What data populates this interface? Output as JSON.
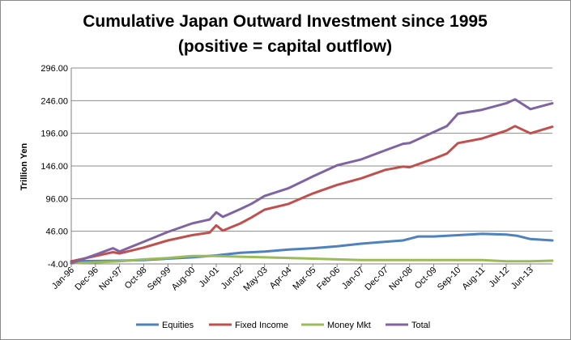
{
  "chart_data": {
    "type": "line",
    "title_line1": "Cumulative Japan Outward Investment since 1995",
    "title_line2": "(positive = capital outflow)",
    "ylabel": "Trillion Yen",
    "xlabel": "",
    "ylim": [
      -4,
      296
    ],
    "ytick_labels": [
      "296.00",
      "246.00",
      "196.00",
      "146.00",
      "96.00",
      "46.00",
      "-4.00"
    ],
    "ytick_values": [
      296,
      246,
      196,
      146,
      96,
      46,
      -4
    ],
    "xtick_labels": [
      "Jan-96",
      "Dec-96",
      "Nov-97",
      "Oct-98",
      "Sep-99",
      "Aug-00",
      "Jul-01",
      "Jun-02",
      "May-03",
      "Apr-04",
      "Mar-05",
      "Feb-06",
      "Jan-07",
      "Dec-07",
      "Nov-08",
      "Oct-09",
      "Sep-10",
      "Aug-11",
      "Jul-12",
      "Jun-13"
    ],
    "x_start": "Jan-96",
    "x_end": "Apr-14",
    "grid": "horizontal",
    "legend_position": "bottom",
    "series": [
      {
        "name": "Equities",
        "color": "#4f81bd",
        "points": [
          {
            "t": "Jan-96",
            "v": 0
          },
          {
            "t": "Dec-96",
            "v": 0.5
          },
          {
            "t": "Nov-97",
            "v": 1
          },
          {
            "t": "Oct-98",
            "v": 2
          },
          {
            "t": "Sep-99",
            "v": 4
          },
          {
            "t": "Aug-00",
            "v": 6
          },
          {
            "t": "Jul-01",
            "v": 9
          },
          {
            "t": "Jun-02",
            "v": 13
          },
          {
            "t": "May-03",
            "v": 15
          },
          {
            "t": "Apr-04",
            "v": 18
          },
          {
            "t": "Mar-05",
            "v": 20
          },
          {
            "t": "Feb-06",
            "v": 23
          },
          {
            "t": "Jan-07",
            "v": 27
          },
          {
            "t": "Dec-07",
            "v": 30
          },
          {
            "t": "Aug-08",
            "v": 32
          },
          {
            "t": "Mar-09",
            "v": 38
          },
          {
            "t": "Oct-09",
            "v": 38
          },
          {
            "t": "Sep-10",
            "v": 40
          },
          {
            "t": "Aug-11",
            "v": 42
          },
          {
            "t": "Jul-12",
            "v": 41
          },
          {
            "t": "Dec-12",
            "v": 39
          },
          {
            "t": "Jun-13",
            "v": 34
          },
          {
            "t": "Apr-14",
            "v": 32
          }
        ]
      },
      {
        "name": "Fixed Income",
        "color": "#c0504d",
        "points": [
          {
            "t": "Jan-96",
            "v": 0
          },
          {
            "t": "Dec-96",
            "v": 8
          },
          {
            "t": "Aug-97",
            "v": 14
          },
          {
            "t": "Nov-97",
            "v": 12
          },
          {
            "t": "Oct-98",
            "v": 21
          },
          {
            "t": "Sep-99",
            "v": 32
          },
          {
            "t": "Aug-00",
            "v": 40
          },
          {
            "t": "Apr-01",
            "v": 44
          },
          {
            "t": "Jul-01",
            "v": 55
          },
          {
            "t": "Oct-01",
            "v": 47
          },
          {
            "t": "Jun-02",
            "v": 58
          },
          {
            "t": "Nov-02",
            "v": 67
          },
          {
            "t": "May-03",
            "v": 79
          },
          {
            "t": "Apr-04",
            "v": 88
          },
          {
            "t": "Mar-05",
            "v": 104
          },
          {
            "t": "Feb-06",
            "v": 117
          },
          {
            "t": "Jan-07",
            "v": 127
          },
          {
            "t": "Dec-07",
            "v": 140
          },
          {
            "t": "Aug-08",
            "v": 145
          },
          {
            "t": "Nov-08",
            "v": 144
          },
          {
            "t": "Oct-09",
            "v": 157
          },
          {
            "t": "Apr-10",
            "v": 165
          },
          {
            "t": "Sep-10",
            "v": 181
          },
          {
            "t": "Aug-11",
            "v": 188
          },
          {
            "t": "Jul-12",
            "v": 200
          },
          {
            "t": "Nov-12",
            "v": 207
          },
          {
            "t": "Jun-13",
            "v": 196
          },
          {
            "t": "Apr-14",
            "v": 206
          }
        ]
      },
      {
        "name": "Money Mkt",
        "color": "#9bbb59",
        "points": [
          {
            "t": "Jan-96",
            "v": -3
          },
          {
            "t": "Nov-97",
            "v": 0
          },
          {
            "t": "Oct-98",
            "v": 3
          },
          {
            "t": "Sep-99",
            "v": 5
          },
          {
            "t": "Aug-00",
            "v": 8
          },
          {
            "t": "Jul-01",
            "v": 8
          },
          {
            "t": "Jun-02",
            "v": 7
          },
          {
            "t": "May-03",
            "v": 6
          },
          {
            "t": "Mar-05",
            "v": 4
          },
          {
            "t": "Jan-07",
            "v": 2
          },
          {
            "t": "Oct-09",
            "v": 2
          },
          {
            "t": "Aug-11",
            "v": 2
          },
          {
            "t": "Jul-12",
            "v": 0
          },
          {
            "t": "Jun-13",
            "v": 0
          },
          {
            "t": "Apr-14",
            "v": 1
          }
        ]
      },
      {
        "name": "Total",
        "color": "#8064a2",
        "points": [
          {
            "t": "Jan-96",
            "v": -3
          },
          {
            "t": "Dec-96",
            "v": 10
          },
          {
            "t": "Aug-97",
            "v": 20
          },
          {
            "t": "Nov-97",
            "v": 15
          },
          {
            "t": "Oct-98",
            "v": 30
          },
          {
            "t": "Sep-99",
            "v": 45
          },
          {
            "t": "Aug-00",
            "v": 58
          },
          {
            "t": "Apr-01",
            "v": 64
          },
          {
            "t": "Jul-01",
            "v": 75
          },
          {
            "t": "Oct-01",
            "v": 68
          },
          {
            "t": "Jun-02",
            "v": 80
          },
          {
            "t": "Nov-02",
            "v": 88
          },
          {
            "t": "May-03",
            "v": 100
          },
          {
            "t": "Apr-04",
            "v": 112
          },
          {
            "t": "Mar-05",
            "v": 130
          },
          {
            "t": "Feb-06",
            "v": 147
          },
          {
            "t": "Jan-07",
            "v": 156
          },
          {
            "t": "Dec-07",
            "v": 170
          },
          {
            "t": "Aug-08",
            "v": 180
          },
          {
            "t": "Nov-08",
            "v": 181
          },
          {
            "t": "Oct-09",
            "v": 198
          },
          {
            "t": "Apr-10",
            "v": 207
          },
          {
            "t": "Sep-10",
            "v": 226
          },
          {
            "t": "Aug-11",
            "v": 232
          },
          {
            "t": "Jul-12",
            "v": 242
          },
          {
            "t": "Nov-12",
            "v": 248
          },
          {
            "t": "Jun-13",
            "v": 233
          },
          {
            "t": "Apr-14",
            "v": 242
          }
        ]
      }
    ]
  }
}
